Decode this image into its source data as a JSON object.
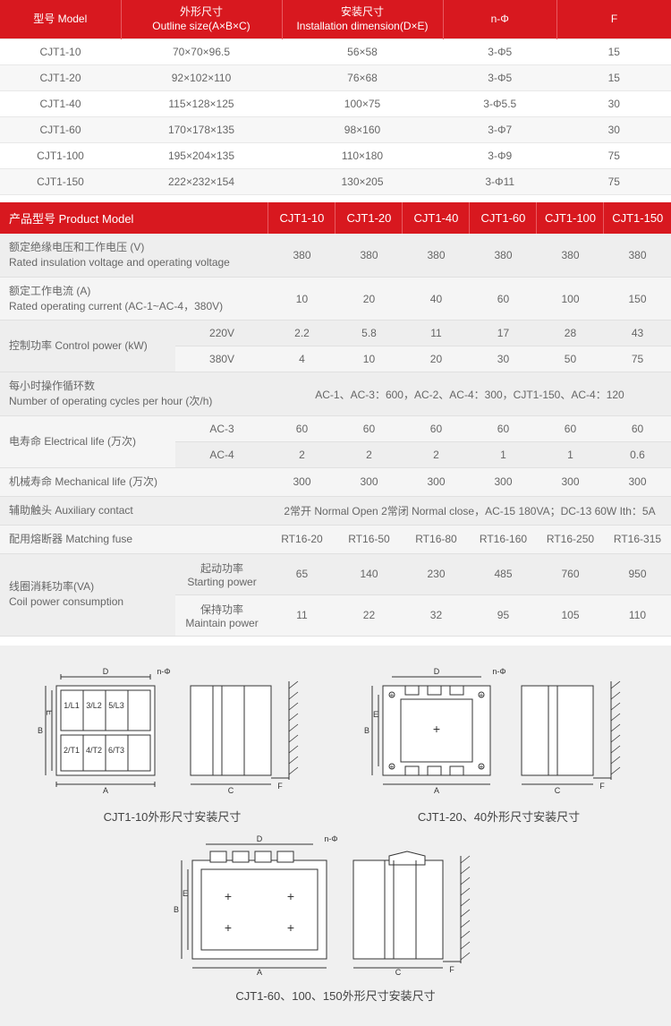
{
  "table1": {
    "headers": [
      {
        "zh": "型号 Model",
        "en": ""
      },
      {
        "zh": "外形尺寸",
        "en": "Outline size(A×B×C)"
      },
      {
        "zh": "安装尺寸",
        "en": "Installation dimension(D×E)"
      },
      {
        "zh": "n-Φ",
        "en": ""
      },
      {
        "zh": "F",
        "en": ""
      }
    ],
    "rows": [
      [
        "CJT1-10",
        "70×70×96.5",
        "56×58",
        "3-Φ5",
        "15"
      ],
      [
        "CJT1-20",
        "92×102×110",
        "76×68",
        "3-Φ5",
        "15"
      ],
      [
        "CJT1-40",
        "115×128×125",
        "100×75",
        "3-Φ5.5",
        "30"
      ],
      [
        "CJT1-60",
        "170×178×135",
        "98×160",
        "3-Φ7",
        "30"
      ],
      [
        "CJT1-100",
        "195×204×135",
        "110×180",
        "3-Φ9",
        "75"
      ],
      [
        "CJT1-150",
        "222×232×154",
        "130×205",
        "3-Φ11",
        "75"
      ]
    ],
    "col_widths": [
      "18%",
      "24%",
      "24%",
      "17%",
      "17%"
    ]
  },
  "table2": {
    "header_label": "产品型号 Product Model",
    "models": [
      "CJT1-10",
      "CJT1-20",
      "CJT1-40",
      "CJT1-60",
      "CJT1-100",
      "CJT1-150"
    ],
    "rows": [
      {
        "label_zh": "额定绝缘电压和工作电压 (V)",
        "label_en": "Rated insulation voltage and operating voltage",
        "sub": "",
        "vals": [
          "380",
          "380",
          "380",
          "380",
          "380",
          "380"
        ],
        "rowspan": 1
      },
      {
        "label_zh": "额定工作电流 (A)",
        "label_en": "Rated operating current (AC-1~AC-4，380V)",
        "sub": "",
        "vals": [
          "10",
          "20",
          "40",
          "60",
          "100",
          "150"
        ],
        "rowspan": 1
      },
      {
        "label_zh": "控制功率 Control power (kW)",
        "label_en": "",
        "sub": "220V",
        "vals": [
          "2.2",
          "5.8",
          "11",
          "17",
          "28",
          "43"
        ],
        "rowspan": 2
      },
      {
        "sub": "380V",
        "vals": [
          "4",
          "10",
          "20",
          "30",
          "50",
          "75"
        ]
      },
      {
        "label_zh": "每小时操作循环数",
        "label_en": "Number of operating cycles per hour (次/h)",
        "sub": "",
        "span_text": "AC-1、AC-3：600，AC-2、AC-4：300，CJT1-150、AC-4：120",
        "rowspan": 1
      },
      {
        "label_zh": "电寿命 Electrical life (万次)",
        "label_en": "",
        "sub": "AC-3",
        "vals": [
          "60",
          "60",
          "60",
          "60",
          "60",
          "60"
        ],
        "rowspan": 2
      },
      {
        "sub": "AC-4",
        "vals": [
          "2",
          "2",
          "2",
          "1",
          "1",
          "0.6"
        ]
      },
      {
        "label_zh": "机械寿命 Mechanical life (万次)",
        "label_en": "",
        "sub": "",
        "vals": [
          "300",
          "300",
          "300",
          "300",
          "300",
          "300"
        ],
        "rowspan": 1
      },
      {
        "label_zh": "辅助触头 Auxiliary contact",
        "label_en": "",
        "sub": "",
        "span_text": "2常开 Normal Open  2常闭 Normal close，AC-15  180VA；DC-13  60W  Ith：5A",
        "rowspan": 1
      },
      {
        "label_zh": "配用熔断器 Matching fuse",
        "label_en": "",
        "sub": "",
        "vals": [
          "RT16-20",
          "RT16-50",
          "RT16-80",
          "RT16-160",
          "RT16-250",
          "RT16-315"
        ],
        "rowspan": 1
      },
      {
        "label_zh": "线圈消耗功率(VA)",
        "label_en": "Coil power consumption",
        "sub_zh": "起动功率",
        "sub_en": "Starting power",
        "vals": [
          "65",
          "140",
          "230",
          "485",
          "760",
          "950"
        ],
        "rowspan": 2
      },
      {
        "sub_zh": "保持功率",
        "sub_en": "Maintain power",
        "vals": [
          "11",
          "22",
          "32",
          "95",
          "105",
          "110"
        ]
      }
    ],
    "label_col_width": "27%",
    "sub_col_width": "13%",
    "val_col_width": "10%"
  },
  "diagrams": {
    "cap1": "CJT1-10外形尺寸安装尺寸",
    "cap2": "CJT1-20、40外形尺寸安装尺寸",
    "cap3": "CJT1-60、100、150外形尺寸安装尺寸",
    "dim_labels": {
      "A": "A",
      "B": "B",
      "C": "C",
      "D": "D",
      "E": "E",
      "F": "F",
      "nphi": "n-Φ"
    }
  },
  "colors": {
    "header_bg": "#d8181f",
    "header_text": "#ffffff",
    "row_alt": "#f5f5f5",
    "border": "#e0e0e0",
    "text": "#666666",
    "diag_bg": "#f0f0f0"
  }
}
